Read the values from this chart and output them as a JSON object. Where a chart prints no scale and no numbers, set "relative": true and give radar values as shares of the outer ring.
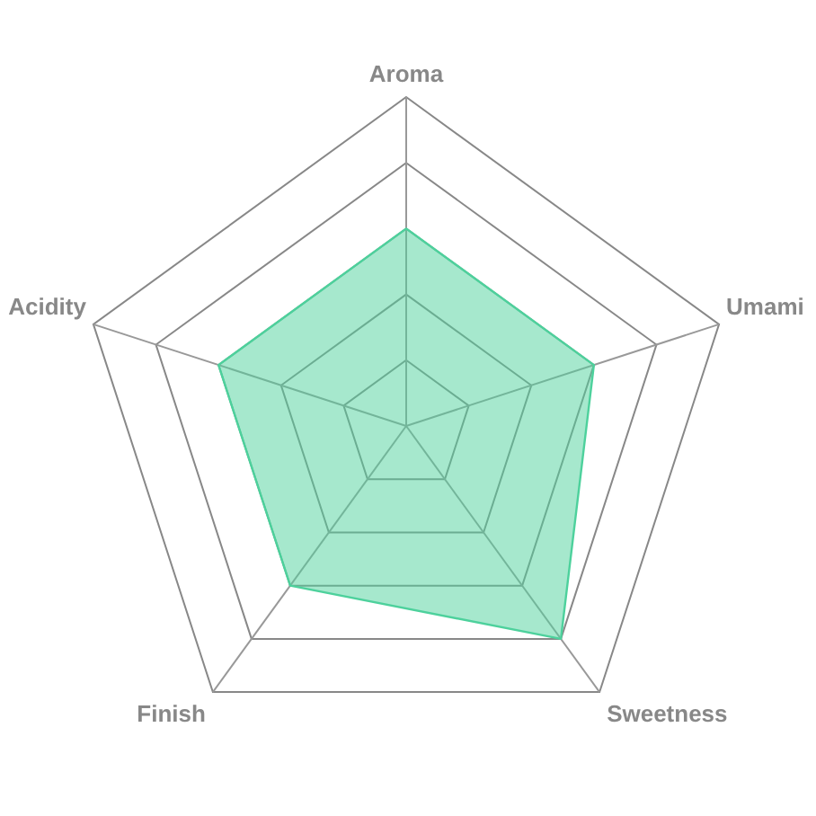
{
  "chart_data": {
    "type": "radar",
    "categories": [
      "Aroma",
      "Umami",
      "Sweetness",
      "Finish",
      "Acidity"
    ],
    "relative": true,
    "grid": true,
    "series": [
      {
        "color": "#4dd19c",
        "values": [
          0.6,
          0.6,
          0.8,
          0.6,
          0.6
        ]
      }
    ]
  }
}
